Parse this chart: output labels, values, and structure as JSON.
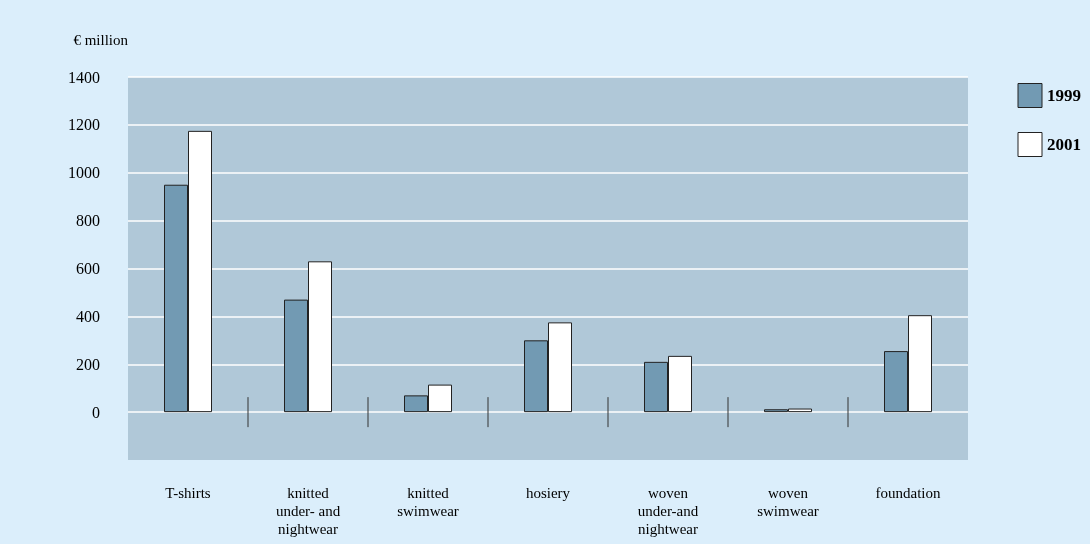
{
  "chart_data": {
    "type": "bar",
    "ylabel": "€ million",
    "categories": [
      "T-shirts",
      "knitted\nunder- and\nnightwear",
      "knitted\nswimwear",
      "hosiery",
      "woven\nunder-and\nnightwear",
      "woven\nswimwear",
      "foundation"
    ],
    "series": [
      {
        "name": "1999",
        "color": "#729ab3",
        "values": [
          950,
          470,
          70,
          300,
          210,
          12,
          255
        ]
      },
      {
        "name": "2001",
        "color": "#ffffff",
        "values": [
          1175,
          630,
          115,
          375,
          235,
          15,
          405
        ]
      }
    ],
    "ylim": [
      -200,
      1400
    ],
    "yticks": [
      0,
      200,
      400,
      600,
      800,
      1000,
      1200,
      1400
    ],
    "grid": "y",
    "legend": "top right"
  }
}
